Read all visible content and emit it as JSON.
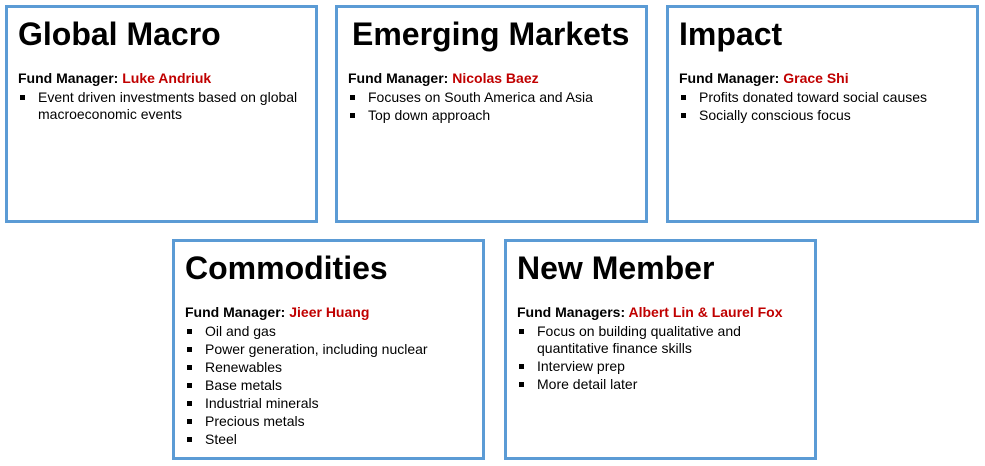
{
  "cards": [
    {
      "title": "Global Macro",
      "manager_label": "Fund Manager:",
      "manager_name": "Luke Andriuk",
      "bullets": [
        "Event driven investments based on global macroeconomic events"
      ]
    },
    {
      "title": "Emerging Markets",
      "manager_label": "Fund Manager:",
      "manager_name": "Nicolas Baez",
      "bullets": [
        "Focuses on South America and Asia",
        "Top down approach"
      ]
    },
    {
      "title": "Impact",
      "manager_label": "Fund Manager:",
      "manager_name": "Grace Shi",
      "bullets": [
        "Profits donated toward social causes",
        "Socially conscious focus"
      ]
    },
    {
      "title": "Commodities",
      "manager_label": "Fund Manager:",
      "manager_name": "Jieer Huang",
      "bullets": [
        "Oil and gas",
        "Power generation, including nuclear",
        "Renewables",
        "Base metals",
        "Industrial minerals",
        "Precious metals",
        "Steel"
      ]
    },
    {
      "title": "New Member",
      "manager_label": "Fund Managers:",
      "manager_name": "Albert Lin & Laurel Fox",
      "bullets": [
        "Focus on building qualitative and quantitative finance skills",
        "Interview prep",
        "More detail later"
      ]
    }
  ],
  "colors": {
    "border": "#5b9bd5",
    "manager_name": "#c00000"
  }
}
